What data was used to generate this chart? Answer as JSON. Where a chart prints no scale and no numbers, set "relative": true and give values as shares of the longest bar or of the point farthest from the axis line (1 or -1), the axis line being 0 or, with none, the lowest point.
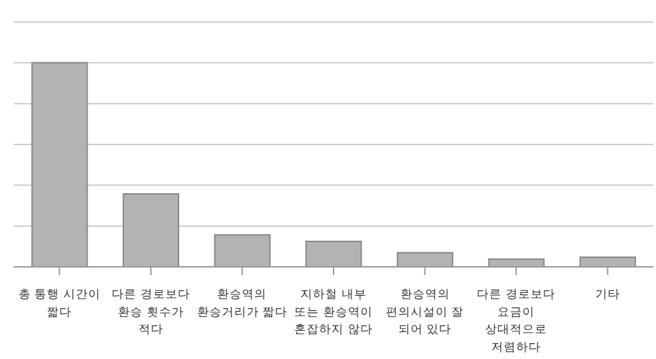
{
  "chart_data": {
    "type": "bar",
    "relative": true,
    "grid": "y",
    "color": "#b3b3b3",
    "categories": [
      "총 통행 시간이 짧다",
      "다른 경로보다 환승 횟수가 적다",
      "환승역의 환승거리가 짧다",
      "지하철 내부 또는 환승역이 혼잡하지 않다",
      "환승역의 편의시설이 잘 되어 있다",
      "다른 경로보다 요금이 상대적으로 저렴하다",
      "기타"
    ],
    "values": [
      1,
      0.357,
      0.157,
      0.125,
      0.069,
      0.038,
      0.047
    ]
  }
}
